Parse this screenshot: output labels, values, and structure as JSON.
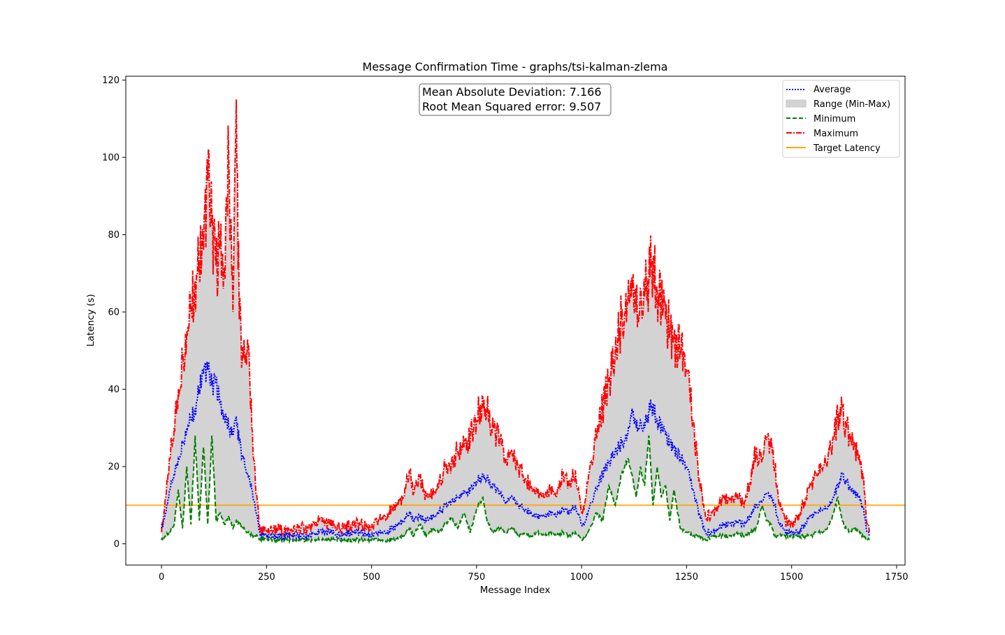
{
  "chart_data": {
    "type": "line",
    "title": "Message Confirmation Time - graphs/tsi-kalman-zlema",
    "xlabel": "Message Index",
    "ylabel": "Latency (s)",
    "xlim": [
      -85,
      1770
    ],
    "ylim": [
      -5.5,
      121
    ],
    "xticks": [
      0,
      250,
      500,
      750,
      1000,
      1250,
      1500,
      1750
    ],
    "xtick_labels": [
      "0",
      "250",
      "500",
      "750",
      "1000",
      "1250",
      "1500",
      "1750"
    ],
    "yticks": [
      0,
      20,
      40,
      60,
      80,
      100,
      120
    ],
    "ytick_labels": [
      "0",
      "20",
      "40",
      "60",
      "80",
      "100",
      "120"
    ],
    "grid": false,
    "legend_position": "top-right",
    "annotation": {
      "position": "top-center",
      "lines": [
        "Mean Absolute Deviation: 7.166",
        "Root Mean Squared error: 9.507"
      ]
    },
    "target_latency": 10,
    "series_styles": [
      {
        "name": "Average",
        "color": "#0000ff",
        "style": "dotted"
      },
      {
        "name": "Range (Min-Max)",
        "color": "#d3d3d3",
        "style": "fill"
      },
      {
        "name": "Minimum",
        "color": "#008000",
        "style": "dashed"
      },
      {
        "name": "Maximum",
        "color": "#ff0000",
        "style": "dashdot"
      },
      {
        "name": "Target Latency",
        "color": "#ffa500",
        "style": "solid"
      }
    ],
    "series": [
      {
        "name": "Maximum",
        "x": [
          0,
          10,
          20,
          30,
          40,
          50,
          60,
          70,
          80,
          90,
          100,
          110,
          120,
          130,
          140,
          150,
          160,
          170,
          178,
          185,
          195,
          205,
          215,
          225,
          235,
          250,
          275,
          300,
          325,
          350,
          375,
          400,
          425,
          450,
          475,
          500,
          525,
          550,
          575,
          590,
          600,
          615,
          630,
          645,
          660,
          675,
          690,
          705,
          720,
          735,
          750,
          765,
          775,
          790,
          805,
          820,
          835,
          850,
          865,
          880,
          895,
          910,
          925,
          940,
          955,
          970,
          985,
          1000,
          1010,
          1020,
          1035,
          1050,
          1065,
          1080,
          1095,
          1110,
          1120,
          1130,
          1140,
          1150,
          1160,
          1170,
          1180,
          1190,
          1200,
          1210,
          1220,
          1235,
          1250,
          1265,
          1280,
          1295,
          1310,
          1325,
          1340,
          1355,
          1370,
          1385,
          1400,
          1415,
          1430,
          1440,
          1450,
          1460,
          1470,
          1485,
          1500,
          1515,
          1530,
          1545,
          1560,
          1575,
          1590,
          1600,
          1610,
          1620,
          1630,
          1640,
          1650,
          1660,
          1670,
          1680,
          1685
        ],
        "values": [
          3,
          12,
          22,
          30,
          40,
          48,
          55,
          60,
          68,
          73,
          76,
          94,
          83,
          72,
          78,
          70,
          100,
          60,
          115,
          58,
          48,
          53,
          30,
          13,
          3,
          3,
          4,
          3,
          4,
          4,
          6,
          5,
          4,
          5,
          5,
          4,
          7,
          9,
          12,
          19,
          13,
          17,
          12,
          13,
          15,
          20,
          21,
          24,
          25,
          28,
          32,
          38,
          35,
          30,
          27,
          22,
          23,
          20,
          17,
          15,
          13,
          12,
          14,
          12,
          18,
          15,
          19,
          8,
          12,
          20,
          28,
          35,
          42,
          50,
          58,
          62,
          69,
          60,
          66,
          64,
          68,
          74,
          66,
          62,
          58,
          55,
          53,
          50,
          45,
          32,
          17,
          7,
          8,
          10,
          12,
          11,
          13,
          10,
          16,
          24,
          22,
          27,
          25,
          20,
          10,
          6,
          5,
          7,
          11,
          15,
          18,
          20,
          24,
          27,
          33,
          35,
          30,
          27,
          25,
          22,
          17,
          5,
          3
        ]
      },
      {
        "name": "Average",
        "x": [
          0,
          10,
          20,
          30,
          40,
          50,
          60,
          70,
          80,
          90,
          100,
          110,
          120,
          130,
          140,
          150,
          160,
          170,
          178,
          185,
          195,
          205,
          215,
          225,
          235,
          250,
          275,
          300,
          325,
          350,
          375,
          400,
          425,
          450,
          475,
          500,
          525,
          550,
          575,
          590,
          600,
          615,
          630,
          645,
          660,
          675,
          690,
          705,
          720,
          735,
          750,
          765,
          775,
          790,
          805,
          820,
          835,
          850,
          865,
          880,
          895,
          910,
          925,
          940,
          955,
          970,
          985,
          1000,
          1010,
          1020,
          1035,
          1050,
          1065,
          1080,
          1095,
          1110,
          1120,
          1130,
          1140,
          1150,
          1160,
          1170,
          1180,
          1190,
          1200,
          1210,
          1220,
          1235,
          1250,
          1265,
          1280,
          1295,
          1310,
          1325,
          1340,
          1355,
          1370,
          1385,
          1400,
          1415,
          1430,
          1440,
          1450,
          1460,
          1470,
          1485,
          1500,
          1515,
          1530,
          1545,
          1560,
          1575,
          1590,
          1600,
          1610,
          1620,
          1630,
          1640,
          1650,
          1660,
          1670,
          1680,
          1685
        ],
        "values": [
          4,
          8,
          14,
          18,
          22,
          26,
          30,
          32,
          35,
          40,
          44,
          45,
          41,
          42,
          36,
          33,
          30,
          28,
          33,
          26,
          22,
          18,
          14,
          8,
          2,
          2,
          2,
          2,
          2,
          2,
          3,
          3,
          2,
          3,
          3,
          2,
          3,
          4,
          6,
          8,
          6,
          7,
          6,
          7,
          8,
          10,
          11,
          12,
          13,
          14,
          16,
          18,
          17,
          15,
          13,
          11,
          12,
          10,
          9,
          8,
          7,
          7,
          8,
          7,
          9,
          8,
          10,
          5,
          6,
          10,
          14,
          18,
          21,
          24,
          26,
          28,
          35,
          30,
          32,
          30,
          34,
          36,
          32,
          30,
          28,
          26,
          25,
          22,
          20,
          14,
          8,
          3,
          3,
          4,
          5,
          5,
          6,
          5,
          7,
          10,
          11,
          13,
          12,
          10,
          5,
          3,
          3,
          3,
          5,
          7,
          8,
          9,
          10,
          12,
          15,
          18,
          16,
          14,
          13,
          12,
          9,
          3,
          2
        ]
      },
      {
        "name": "Minimum",
        "x": [
          0,
          10,
          20,
          30,
          40,
          50,
          60,
          70,
          80,
          90,
          100,
          110,
          120,
          130,
          140,
          150,
          160,
          170,
          178,
          185,
          195,
          205,
          215,
          225,
          235,
          250,
          275,
          300,
          325,
          350,
          375,
          400,
          425,
          450,
          475,
          500,
          525,
          550,
          575,
          590,
          600,
          615,
          630,
          645,
          660,
          675,
          690,
          705,
          720,
          735,
          750,
          765,
          775,
          790,
          805,
          820,
          835,
          850,
          865,
          880,
          895,
          910,
          925,
          940,
          955,
          970,
          985,
          1000,
          1010,
          1020,
          1035,
          1050,
          1065,
          1080,
          1095,
          1110,
          1120,
          1130,
          1140,
          1150,
          1160,
          1170,
          1180,
          1190,
          1200,
          1210,
          1220,
          1235,
          1250,
          1265,
          1280,
          1295,
          1310,
          1325,
          1340,
          1355,
          1370,
          1385,
          1400,
          1415,
          1430,
          1440,
          1450,
          1460,
          1470,
          1485,
          1500,
          1515,
          1530,
          1545,
          1560,
          1575,
          1590,
          1600,
          1610,
          1620,
          1630,
          1640,
          1650,
          1660,
          1670,
          1680,
          1685
        ],
        "values": [
          1,
          2,
          3,
          5,
          14,
          4,
          20,
          5,
          28,
          6,
          25,
          5,
          28,
          6,
          8,
          5,
          7,
          4,
          6,
          5,
          4,
          3,
          2,
          2,
          1,
          1,
          1,
          1,
          1,
          1,
          1,
          1,
          1,
          1,
          1,
          1,
          1,
          1,
          2,
          4,
          2,
          5,
          2,
          4,
          3,
          5,
          7,
          4,
          8,
          3,
          9,
          12,
          6,
          3,
          4,
          3,
          4,
          2,
          3,
          2,
          3,
          2,
          3,
          2,
          3,
          2,
          3,
          1,
          2,
          4,
          8,
          6,
          15,
          10,
          18,
          22,
          18,
          12,
          20,
          15,
          28,
          10,
          20,
          12,
          15,
          6,
          14,
          4,
          3,
          2,
          2,
          1,
          2,
          2,
          2,
          2,
          3,
          2,
          3,
          4,
          10,
          6,
          5,
          2,
          2,
          2,
          2,
          2,
          2,
          2,
          3,
          3,
          5,
          8,
          12,
          6,
          4,
          3,
          4,
          3,
          2,
          1,
          1
        ]
      },
      {
        "name": "Target Latency",
        "x": [
          -85,
          1770
        ],
        "values": [
          10,
          10
        ]
      }
    ]
  },
  "legend_labels": [
    "Average",
    "Range (Min-Max)",
    "Minimum",
    "Maximum",
    "Target Latency"
  ]
}
